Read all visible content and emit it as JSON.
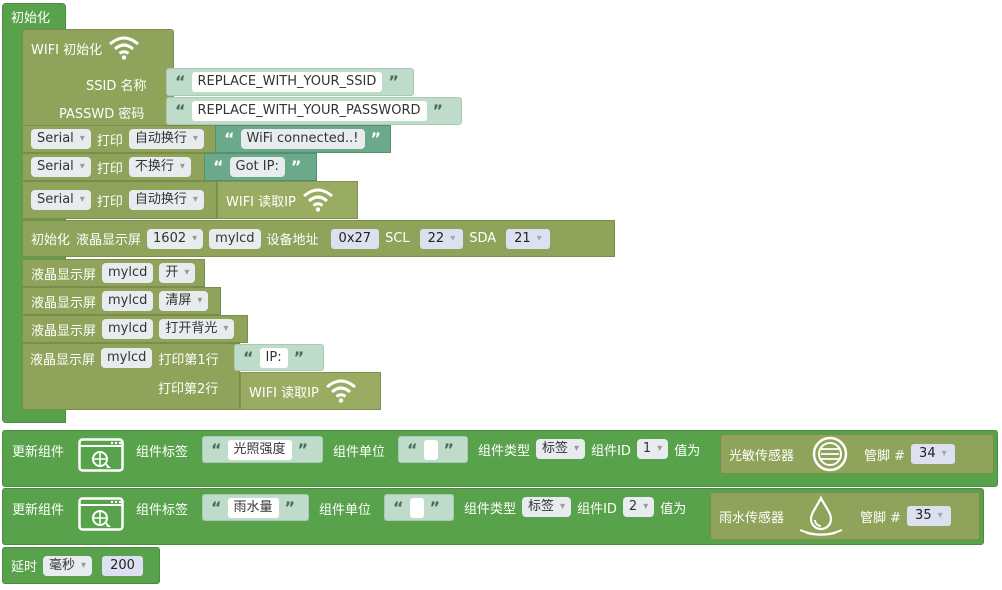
{
  "init": {
    "hat_label": "初始化",
    "wifi_init_label": "WIFI 初始化",
    "ssid_label": "SSID 名称",
    "ssid_value": "REPLACE_WITH_YOUR_SSID",
    "passwd_label": "PASSWD 密码",
    "passwd_value": "REPLACE_WITH_YOUR_PASSWORD",
    "serial_rows": [
      {
        "port": "Serial",
        "print": "打印",
        "mode": "自动换行",
        "text": "WiFi connected..!"
      },
      {
        "port": "Serial",
        "print": "打印",
        "mode": "不换行",
        "text": "Got IP:"
      },
      {
        "port": "Serial",
        "print": "打印",
        "mode": "自动换行",
        "text": "WIFI 读取IP"
      }
    ],
    "lcd_init": {
      "label": "初始化",
      "lcd_label": "液晶显示屏",
      "model": "1602",
      "name": "mylcd",
      "addr_label": "设备地址",
      "addr": "0x27",
      "scl_label": "SCL",
      "scl": "22",
      "sda_label": "SDA",
      "sda": "21"
    },
    "lcd_cmds": [
      {
        "label": "液晶显示屏",
        "name": "mylcd",
        "cmd": "开"
      },
      {
        "label": "液晶显示屏",
        "name": "mylcd",
        "cmd": "清屏"
      },
      {
        "label": "液晶显示屏",
        "name": "mylcd",
        "cmd": "打开背光"
      }
    ],
    "lcd_print": {
      "label": "液晶显示屏",
      "name": "mylcd",
      "line1_label": "打印第1行",
      "line1_text": "IP:",
      "line2_label": "打印第2行",
      "line2_value": "WIFI 读取IP"
    }
  },
  "updates": [
    {
      "label": "更新组件",
      "tag_label": "组件标签",
      "tag": "光照强度",
      "unit_label": "组件单位",
      "type_label": "组件类型",
      "type": "标签",
      "id_label": "组件ID",
      "id": "1",
      "value_label": "值为",
      "sensor": "光敏传感器",
      "pin_label": "管脚 #",
      "pin": "34"
    },
    {
      "label": "更新组件",
      "tag_label": "组件标签",
      "tag": "雨水量",
      "unit_label": "组件单位",
      "type_label": "组件类型",
      "type": "标签",
      "id_label": "组件ID",
      "id": "2",
      "value_label": "值为",
      "sensor": "雨水传感器",
      "pin_label": "管脚 #",
      "pin": "35"
    }
  ],
  "delay": {
    "label": "延时",
    "unit": "毫秒",
    "value": "200"
  },
  "icons": {
    "wifi": "wifi-icon",
    "web_window": "web-window-icon",
    "light_sensor": "light-sensor-icon",
    "rain_sensor": "water-drop-icon"
  },
  "colors": {
    "green_block": "#59a24c",
    "olive_block": "#8fa35a",
    "teal_text_block": "#6aa98a",
    "light_text_block": "#bfdccb"
  }
}
